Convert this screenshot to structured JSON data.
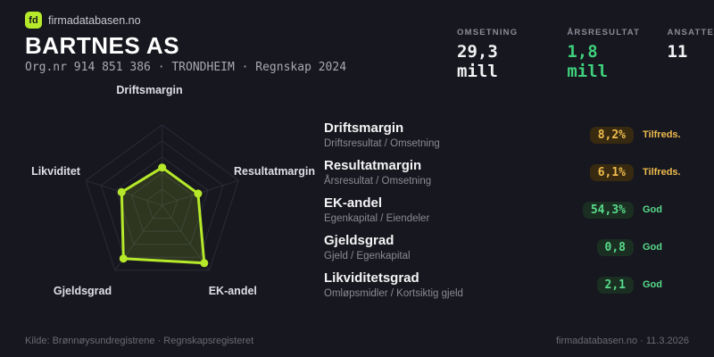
{
  "brand": {
    "logo_text": "fd",
    "name": "firmadatabasen.no"
  },
  "header": {
    "company": "BARTNES AS",
    "org_line": "Org.nr 914 851 386  ·  TRONDHEIM  ·  Regnskap 2024"
  },
  "stats": [
    {
      "label": "OMSETNING",
      "value": "29,3 mill",
      "tone": "white"
    },
    {
      "label": "ÅRSRESULTAT",
      "value": "1,8 mill",
      "tone": "green"
    },
    {
      "label": "ANSATTE",
      "value": "11",
      "tone": "white"
    }
  ],
  "chart_data": {
    "type": "radar",
    "axes": [
      "Driftsmargin",
      "Resultatmargin",
      "EK-andel",
      "Gjeldsgrad",
      "Likviditet"
    ],
    "values": [
      47,
      47,
      89,
      82,
      53
    ],
    "max": 100,
    "rings": 5,
    "stroke_color": "#b5e929",
    "fill_color": "rgba(181,233,41,0.15)",
    "grid_color": "#2b2b3a"
  },
  "metrics": [
    {
      "title": "Driftsmargin",
      "formula": "Driftsresultat / Omsetning",
      "value": "8,2%",
      "status": "Tilfreds.",
      "tone": "amber"
    },
    {
      "title": "Resultatmargin",
      "formula": "Årsresultat / Omsetning",
      "value": "6,1%",
      "status": "Tilfreds.",
      "tone": "amber"
    },
    {
      "title": "EK-andel",
      "formula": "Egenkapital / Eiendeler",
      "value": "54,3%",
      "status": "God",
      "tone": "green"
    },
    {
      "title": "Gjeldsgrad",
      "formula": "Gjeld / Egenkapital",
      "value": "0,8",
      "status": "God",
      "tone": "green"
    },
    {
      "title": "Likviditetsgrad",
      "formula": "Omløpsmidler / Kortsiktig gjeld",
      "value": "2,1",
      "status": "God",
      "tone": "green"
    }
  ],
  "footer": {
    "left": "Kilde: Brønnøysundregistrene · Regnskapsregisteret",
    "right": "firmadatabasen.no · 11.3.2026"
  },
  "colors": {
    "background": "#17171f",
    "accent_lime": "#b5e929",
    "green": "#3ed07c",
    "amber": "#eebb4d"
  }
}
